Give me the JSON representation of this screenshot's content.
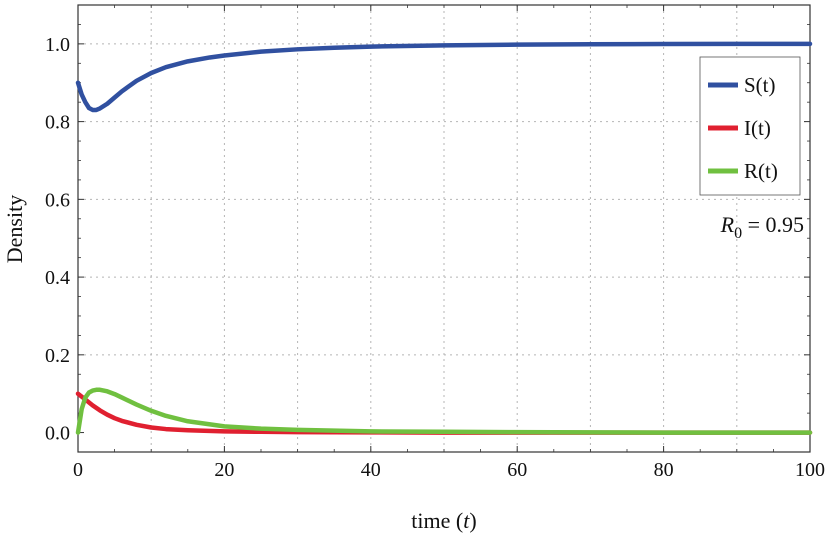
{
  "chart_data": {
    "type": "line",
    "xlabel_prefix": "time",
    "xlabel_var": "t",
    "ylabel": "Density",
    "xlim": [
      0,
      100
    ],
    "ylim": [
      -0.05,
      1.1
    ],
    "xticks": [
      0,
      20,
      40,
      60,
      80,
      100
    ],
    "xtick_labels": [
      "0",
      "20",
      "40",
      "60",
      "80",
      "100"
    ],
    "yticks": [
      0.0,
      0.2,
      0.4,
      0.6,
      0.8,
      1.0
    ],
    "ytick_labels": [
      "0.0",
      "0.2",
      "0.4",
      "0.6",
      "0.8",
      "1.0"
    ],
    "grid": true,
    "grid_x": [
      10,
      20,
      30,
      40,
      50,
      60,
      70,
      80,
      90
    ],
    "grid_y": [
      0.2,
      0.4,
      0.6,
      0.8,
      1.0
    ],
    "legend_position": "top-right",
    "annotation": {
      "symbol": "R",
      "subscript": "0",
      "text": " = 0.95"
    },
    "series": [
      {
        "name": "S(t)",
        "color": "#3050a0",
        "x": [
          0,
          0.5,
          1,
          1.5,
          2,
          2.5,
          3,
          4,
          5,
          6,
          8,
          10,
          12,
          15,
          18,
          20,
          25,
          30,
          35,
          40,
          50,
          60,
          70,
          80,
          90,
          100
        ],
        "y": [
          0.9,
          0.87,
          0.85,
          0.835,
          0.83,
          0.83,
          0.834,
          0.846,
          0.862,
          0.878,
          0.905,
          0.925,
          0.94,
          0.955,
          0.965,
          0.97,
          0.98,
          0.986,
          0.99,
          0.993,
          0.996,
          0.998,
          0.999,
          0.9995,
          1.0,
          1.0
        ]
      },
      {
        "name": "I(t)",
        "color": "#e02030",
        "x": [
          0,
          1,
          2,
          3,
          4,
          5,
          6,
          8,
          10,
          12,
          15,
          20,
          25,
          30,
          40,
          50,
          60,
          70,
          80,
          90,
          100
        ],
        "y": [
          0.1,
          0.085,
          0.07,
          0.057,
          0.046,
          0.037,
          0.03,
          0.02,
          0.013,
          0.009,
          0.006,
          0.003,
          0.002,
          0.001,
          0.0005,
          0.0,
          0.0,
          0.0,
          0.0,
          0.0,
          0.0
        ]
      },
      {
        "name": "R(t)",
        "color": "#70c040",
        "x": [
          0,
          0.5,
          1,
          1.5,
          2,
          2.5,
          3,
          4,
          5,
          6,
          8,
          10,
          12,
          15,
          20,
          25,
          30,
          40,
          50,
          60,
          70,
          80,
          90,
          100
        ],
        "y": [
          0.0,
          0.06,
          0.09,
          0.103,
          0.108,
          0.11,
          0.11,
          0.106,
          0.099,
          0.09,
          0.072,
          0.056,
          0.043,
          0.029,
          0.016,
          0.01,
          0.007,
          0.003,
          0.002,
          0.001,
          0.0005,
          0.0,
          0.0,
          0.0
        ]
      }
    ]
  }
}
